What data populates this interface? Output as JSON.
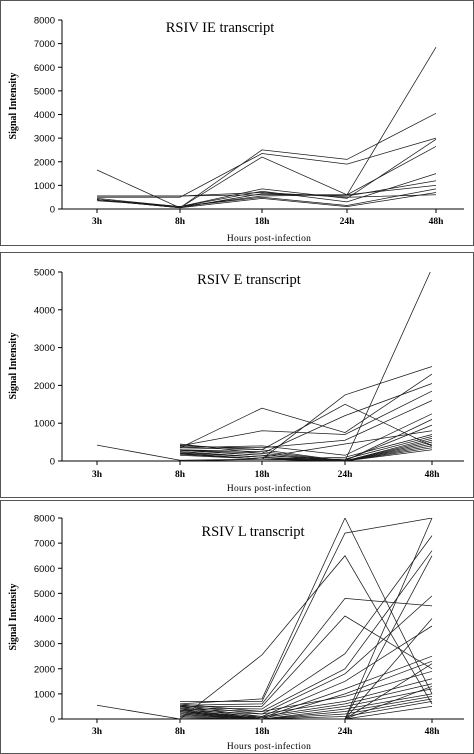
{
  "chart_data": [
    {
      "type": "line",
      "title": "RSIV  IE  transcript",
      "xlabel": "Hours post-infection",
      "ylabel": "Signal Intensity",
      "categories": [
        "3h",
        "8h",
        "18h",
        "24h",
        "48h"
      ],
      "ylim": [
        0,
        8000
      ],
      "yticks": [
        0,
        1000,
        2000,
        3000,
        4000,
        5000,
        6000,
        7000,
        8000
      ],
      "grid": false,
      "legend": "none",
      "series": [
        {
          "values": [
            1650,
            50,
            2500,
            2100,
            4050
          ]
        },
        {
          "values": [
            500,
            500,
            2350,
            1900,
            3000
          ]
        },
        {
          "values": [
            550,
            550,
            600,
            600,
            6850
          ]
        },
        {
          "values": [
            400,
            50,
            2200,
            600,
            2650
          ]
        },
        {
          "values": [
            400,
            100,
            850,
            450,
            2950
          ]
        },
        {
          "values": [
            350,
            100,
            750,
            300,
            1500
          ]
        },
        {
          "values": [
            400,
            50,
            650,
            550,
            1200
          ]
        },
        {
          "values": [
            400,
            100,
            550,
            600,
            1000
          ]
        },
        {
          "values": [
            450,
            100,
            500,
            150,
            850
          ]
        },
        {
          "values": [
            550,
            550,
            700,
            500,
            600
          ]
        },
        {
          "values": [
            400,
            50,
            450,
            100,
            700
          ]
        }
      ]
    },
    {
      "type": "line",
      "title": "RSIV  E  transcript",
      "xlabel": "Hours post-infection",
      "ylabel": "Signal Intensity",
      "categories": [
        "3h",
        "8h",
        "18h",
        "24h",
        "48h"
      ],
      "ylim": [
        0,
        5000
      ],
      "yticks": [
        0,
        1000,
        2000,
        3000,
        4000,
        5000
      ],
      "grid": false,
      "legend": "none",
      "series": [
        {
          "values": [
            null,
            0,
            50,
            0,
            5100
          ]
        },
        {
          "values": [
            420,
            20,
            50,
            1750,
            2500
          ]
        },
        {
          "values": [
            null,
            350,
            1400,
            750,
            2300
          ]
        },
        {
          "values": [
            null,
            420,
            300,
            1500,
            400
          ]
        },
        {
          "values": [
            null,
            450,
            200,
            1200,
            2050
          ]
        },
        {
          "values": [
            null,
            400,
            800,
            700,
            1850
          ]
        },
        {
          "values": [
            null,
            380,
            350,
            550,
            1600
          ]
        },
        {
          "values": [
            null,
            350,
            400,
            150,
            1250
          ]
        },
        {
          "values": [
            null,
            300,
            250,
            0,
            1100
          ]
        },
        {
          "values": [
            null,
            280,
            150,
            20,
            950
          ]
        },
        {
          "values": [
            null,
            250,
            100,
            450,
            800
          ]
        },
        {
          "values": [
            null,
            200,
            50,
            100,
            700
          ]
        },
        {
          "values": [
            null,
            150,
            50,
            50,
            650
          ]
        },
        {
          "values": [
            null,
            300,
            200,
            0,
            600
          ]
        },
        {
          "values": [
            null,
            250,
            100,
            0,
            550
          ]
        },
        {
          "values": [
            null,
            200,
            50,
            0,
            500
          ]
        },
        {
          "values": [
            null,
            350,
            300,
            0,
            450
          ]
        },
        {
          "values": [
            null,
            300,
            150,
            0,
            400
          ]
        },
        {
          "values": [
            null,
            220,
            100,
            0,
            350
          ]
        },
        {
          "values": [
            null,
            180,
            50,
            0,
            300
          ]
        }
      ]
    },
    {
      "type": "line",
      "title": "RSIV  L  transcript",
      "xlabel": "Hours post-infection",
      "ylabel": "Signal Intensity",
      "categories": [
        "3h",
        "8h",
        "18h",
        "24h",
        "48h"
      ],
      "ylim": [
        0,
        8000
      ],
      "yticks": [
        0,
        1000,
        2000,
        3000,
        4000,
        5000,
        6000,
        7000,
        8000
      ],
      "grid": false,
      "legend": "none",
      "series": [
        {
          "values": [
            550,
            0,
            2550,
            6500,
            600
          ]
        },
        {
          "values": [
            null,
            700,
            700,
            7400,
            8000
          ]
        },
        {
          "values": [
            null,
            600,
            800,
            8000,
            1000
          ]
        },
        {
          "values": [
            null,
            550,
            600,
            4800,
            4500
          ]
        },
        {
          "values": [
            null,
            500,
            500,
            4100,
            2000
          ]
        },
        {
          "values": [
            null,
            450,
            400,
            2600,
            7300
          ]
        },
        {
          "values": [
            null,
            400,
            300,
            2000,
            6700
          ]
        },
        {
          "values": [
            null,
            350,
            200,
            1800,
            4900
          ]
        },
        {
          "values": [
            null,
            300,
            100,
            1500,
            3700
          ]
        },
        {
          "values": [
            null,
            250,
            50,
            1200,
            2500
          ]
        },
        {
          "values": [
            null,
            200,
            0,
            1000,
            2300
          ]
        },
        {
          "values": [
            null,
            600,
            300,
            900,
            1900
          ]
        },
        {
          "values": [
            null,
            550,
            200,
            700,
            1600
          ]
        },
        {
          "values": [
            null,
            500,
            100,
            600,
            1400
          ]
        },
        {
          "values": [
            null,
            450,
            50,
            500,
            1200
          ]
        },
        {
          "values": [
            null,
            400,
            0,
            400,
            1000
          ]
        },
        {
          "values": [
            null,
            350,
            0,
            300,
            900
          ]
        },
        {
          "values": [
            null,
            300,
            0,
            200,
            800
          ]
        },
        {
          "values": [
            null,
            250,
            0,
            100,
            700
          ]
        },
        {
          "values": [
            null,
            200,
            0,
            0,
            8000
          ]
        },
        {
          "values": [
            null,
            150,
            0,
            0,
            6500
          ]
        },
        {
          "values": [
            null,
            100,
            0,
            0,
            4000
          ]
        },
        {
          "values": [
            null,
            50,
            0,
            0,
            2200
          ]
        },
        {
          "values": [
            null,
            0,
            0,
            0,
            1300
          ]
        },
        {
          "values": [
            null,
            0,
            0,
            0,
            500
          ]
        }
      ]
    }
  ]
}
